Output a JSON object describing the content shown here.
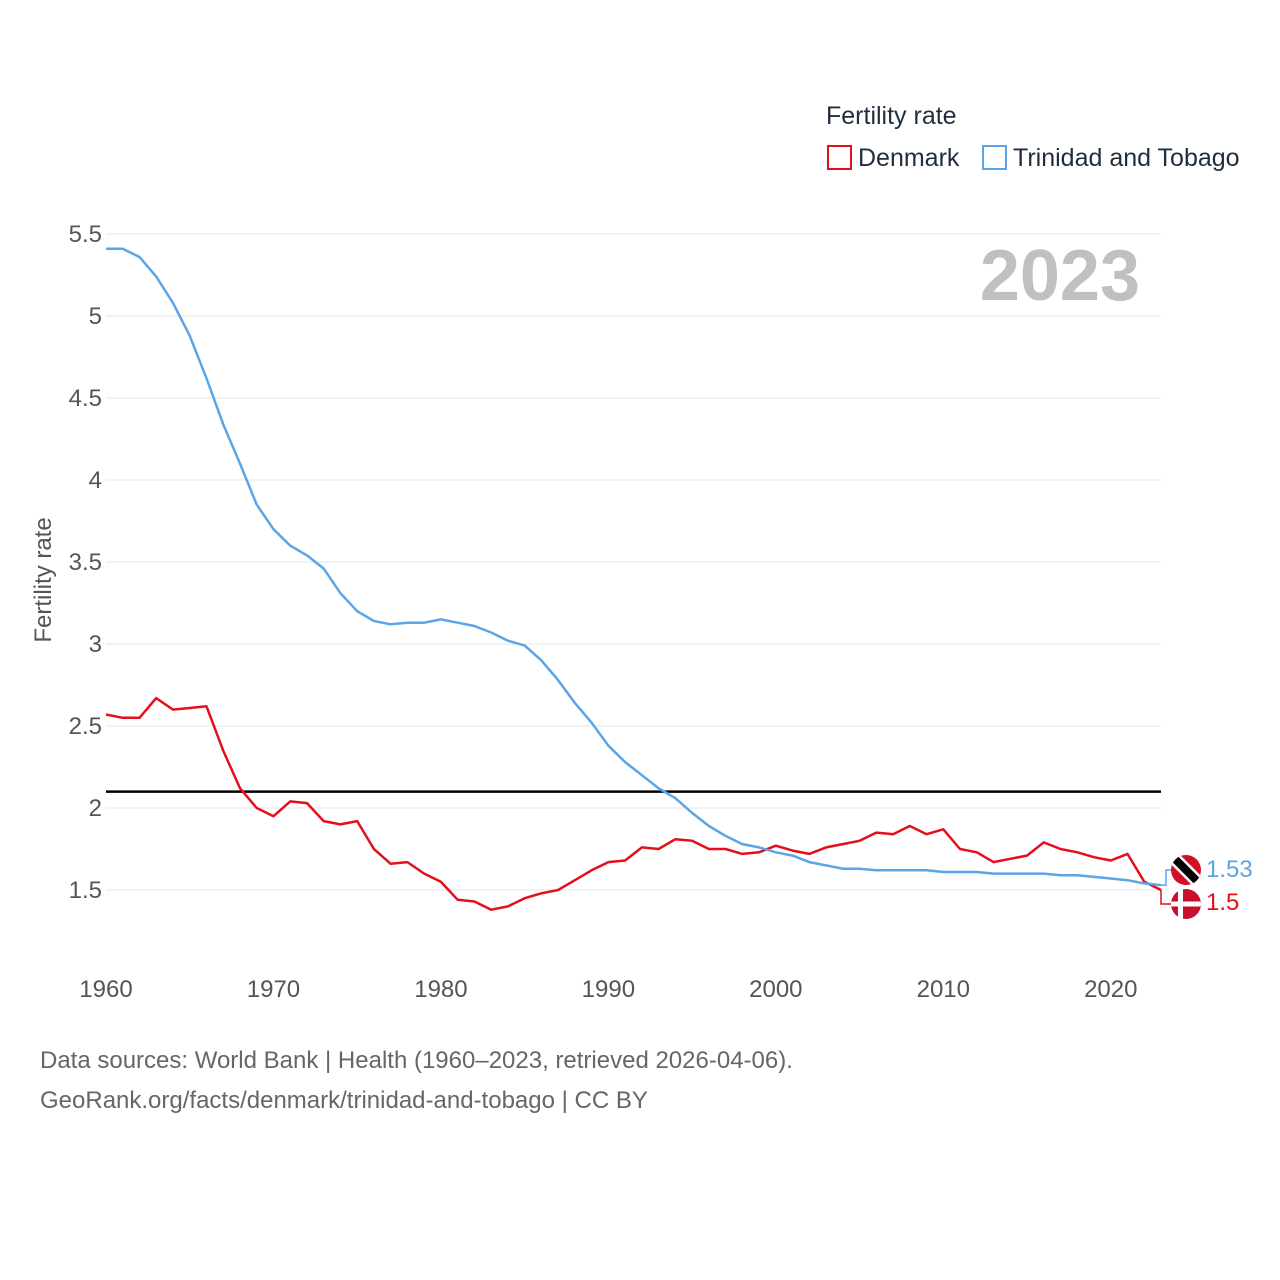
{
  "colors": {
    "denmark": "#e3101b",
    "trinidad": "#5aa5e8",
    "grid": "#e6e6e6",
    "reference": "#000000",
    "year": "#c0c0c0"
  },
  "legend": {
    "title": "Fertility rate",
    "items": [
      {
        "label": "Denmark",
        "color": "#e3101b"
      },
      {
        "label": "Trinidad and Tobago",
        "color": "#5aa5e8"
      }
    ]
  },
  "year_display": "2023",
  "source": {
    "line1": "Data sources: World Bank | Health (1960–2023, retrieved 2026-04-06).",
    "line2": "GeoRank.org/facts/denmark/trinidad-and-tobago | CC BY"
  },
  "chart_data": {
    "type": "line",
    "title": "Fertility rate",
    "xlabel": "",
    "ylabel": "Fertility rate",
    "xlim": [
      1960,
      2023
    ],
    "ylim": [
      1.2,
      5.5
    ],
    "x_ticks": [
      1960,
      1970,
      1980,
      1990,
      2000,
      2010,
      2020
    ],
    "y_ticks": [
      1.5,
      2,
      2.5,
      3,
      3.5,
      4,
      4.5,
      5,
      5.5
    ],
    "y_tick_labels": [
      "1.5",
      "2",
      "2.5",
      "3",
      "3.5",
      "4",
      "4.5",
      "5",
      "5.5"
    ],
    "reference_line": 2.1,
    "x": [
      1960,
      1961,
      1962,
      1963,
      1964,
      1965,
      1966,
      1967,
      1968,
      1969,
      1970,
      1971,
      1972,
      1973,
      1974,
      1975,
      1976,
      1977,
      1978,
      1979,
      1980,
      1981,
      1982,
      1983,
      1984,
      1985,
      1986,
      1987,
      1988,
      1989,
      1990,
      1991,
      1992,
      1993,
      1994,
      1995,
      1996,
      1997,
      1998,
      1999,
      2000,
      2001,
      2002,
      2003,
      2004,
      2005,
      2006,
      2007,
      2008,
      2009,
      2010,
      2011,
      2012,
      2013,
      2014,
      2015,
      2016,
      2017,
      2018,
      2019,
      2020,
      2021,
      2022,
      2023
    ],
    "series": [
      {
        "name": "Denmark",
        "color": "#e3101b",
        "end_label": "1.5",
        "values": [
          2.57,
          2.55,
          2.55,
          2.67,
          2.6,
          2.61,
          2.62,
          2.35,
          2.12,
          2.0,
          1.95,
          2.04,
          2.03,
          1.92,
          1.9,
          1.92,
          1.75,
          1.66,
          1.67,
          1.6,
          1.55,
          1.44,
          1.43,
          1.38,
          1.4,
          1.45,
          1.48,
          1.5,
          1.56,
          1.62,
          1.67,
          1.68,
          1.76,
          1.75,
          1.81,
          1.8,
          1.75,
          1.75,
          1.72,
          1.73,
          1.77,
          1.74,
          1.72,
          1.76,
          1.78,
          1.8,
          1.85,
          1.84,
          1.89,
          1.84,
          1.87,
          1.75,
          1.73,
          1.67,
          1.69,
          1.71,
          1.79,
          1.75,
          1.73,
          1.7,
          1.68,
          1.72,
          1.55,
          1.5
        ]
      },
      {
        "name": "Trinidad and Tobago",
        "color": "#5aa5e8",
        "end_label": "1.53",
        "values": [
          5.41,
          5.41,
          5.36,
          5.24,
          5.08,
          4.88,
          4.62,
          4.34,
          4.1,
          3.85,
          3.7,
          3.6,
          3.54,
          3.46,
          3.31,
          3.2,
          3.14,
          3.12,
          3.13,
          3.13,
          3.15,
          3.13,
          3.11,
          3.07,
          3.02,
          2.99,
          2.9,
          2.78,
          2.64,
          2.52,
          2.38,
          2.28,
          2.2,
          2.12,
          2.06,
          1.97,
          1.89,
          1.83,
          1.78,
          1.76,
          1.73,
          1.71,
          1.67,
          1.65,
          1.63,
          1.63,
          1.62,
          1.62,
          1.62,
          1.62,
          1.61,
          1.61,
          1.61,
          1.6,
          1.6,
          1.6,
          1.6,
          1.59,
          1.59,
          1.58,
          1.57,
          1.56,
          1.54,
          1.53
        ]
      }
    ]
  }
}
